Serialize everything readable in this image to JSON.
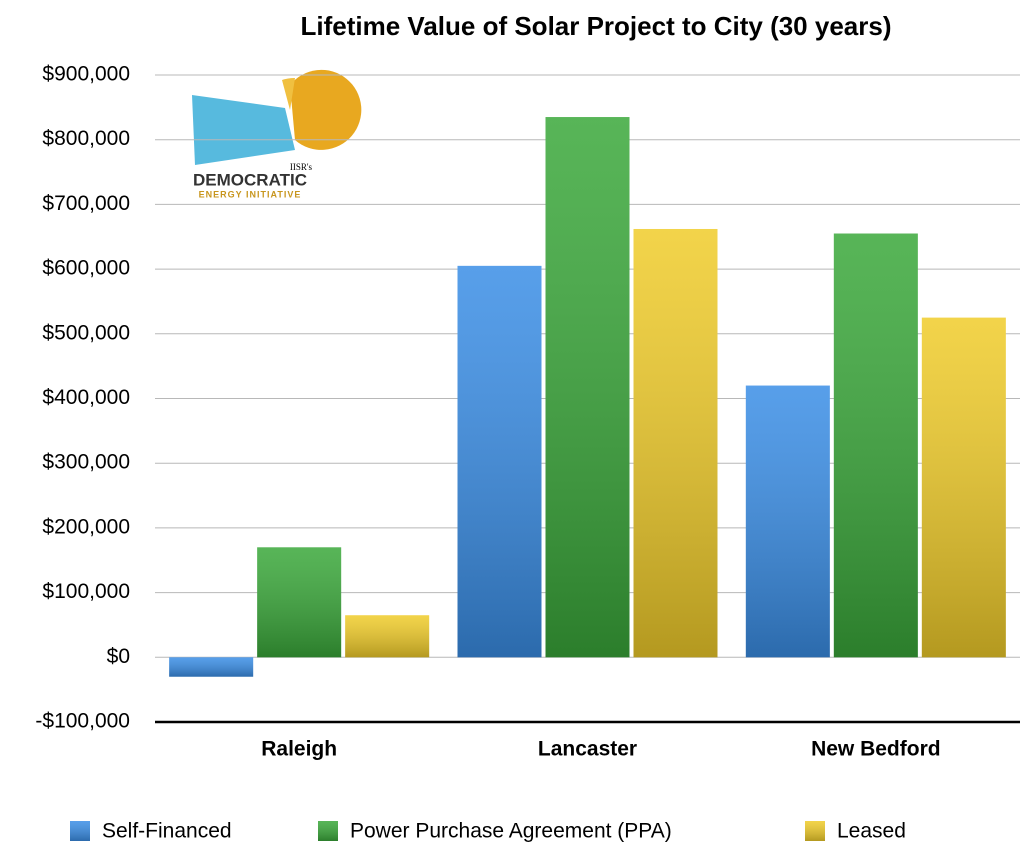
{
  "chart_data": {
    "type": "bar",
    "title": "Lifetime Value of Solar Project to City (30 years)",
    "categories": [
      "Raleigh",
      "Lancaster",
      "New Bedford"
    ],
    "series": [
      {
        "name": "Self-Financed",
        "color": "#3a8ee6",
        "values": [
          -30000,
          605000,
          420000
        ]
      },
      {
        "name": "Power Purchase Agreement (PPA)",
        "color": "#3aa83a",
        "values": [
          170000,
          835000,
          655000
        ]
      },
      {
        "name": "Leased",
        "color": "#f0cc2a",
        "values": [
          65000,
          662000,
          525000
        ]
      }
    ],
    "ylim": [
      -100000,
      900000
    ],
    "yticks": [
      {
        "value": -100000,
        "label": "-$100,000"
      },
      {
        "value": 0,
        "label": "$0"
      },
      {
        "value": 100000,
        "label": "$100,000"
      },
      {
        "value": 200000,
        "label": "$200,000"
      },
      {
        "value": 300000,
        "label": "$300,000"
      },
      {
        "value": 400000,
        "label": "$400,000"
      },
      {
        "value": 500000,
        "label": "$500,000"
      },
      {
        "value": 600000,
        "label": "$600,000"
      },
      {
        "value": 700000,
        "label": "$700,000"
      },
      {
        "value": 800000,
        "label": "$800,000"
      },
      {
        "value": 900000,
        "label": "$900,000"
      }
    ],
    "grid": true,
    "legend": "bottom"
  },
  "logo": {
    "owner": "IISR's",
    "name": "DEMOCRATIC",
    "tagline": "ENERGY INITIATIVE"
  }
}
